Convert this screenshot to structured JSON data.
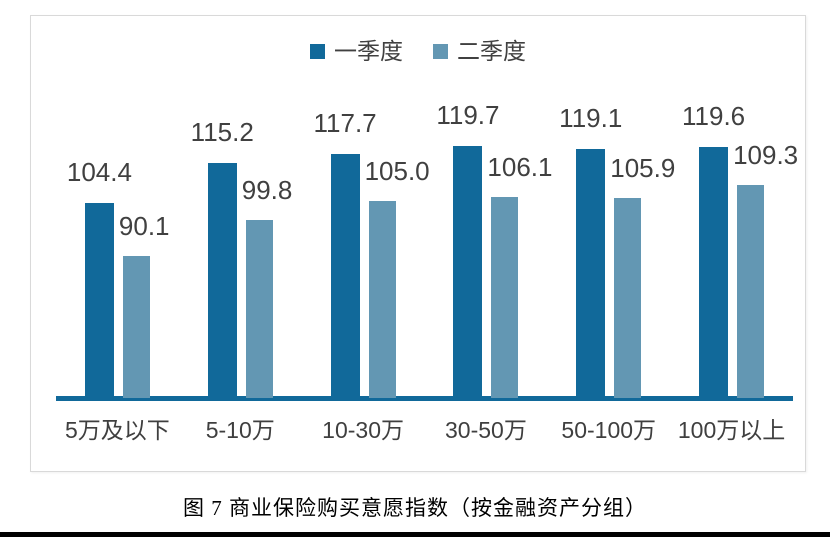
{
  "figure": {
    "caption": "图 7 商业保险购买意愿指数（按金融资产分组）"
  },
  "chart_data": {
    "type": "bar",
    "title": "",
    "categories": [
      "5万及以下",
      "5-10万",
      "10-30万",
      "30-50万",
      "50-100万",
      "100万以上"
    ],
    "series": [
      {
        "name": "一季度",
        "color": "#11699A",
        "values": [
          104.4,
          115.2,
          117.7,
          119.7,
          119.1,
          119.6
        ]
      },
      {
        "name": "二季度",
        "color": "#6397B3",
        "values": [
          90.1,
          99.8,
          105.0,
          106.1,
          105.9,
          109.3
        ]
      }
    ],
    "ylim": [
      50,
      140
    ],
    "grid": false,
    "y_axis_visible": false,
    "legend_position": "top",
    "value_labels": true,
    "value_label_format": "0.0",
    "baseline_color": "#11699A",
    "label_color": "#404040"
  }
}
